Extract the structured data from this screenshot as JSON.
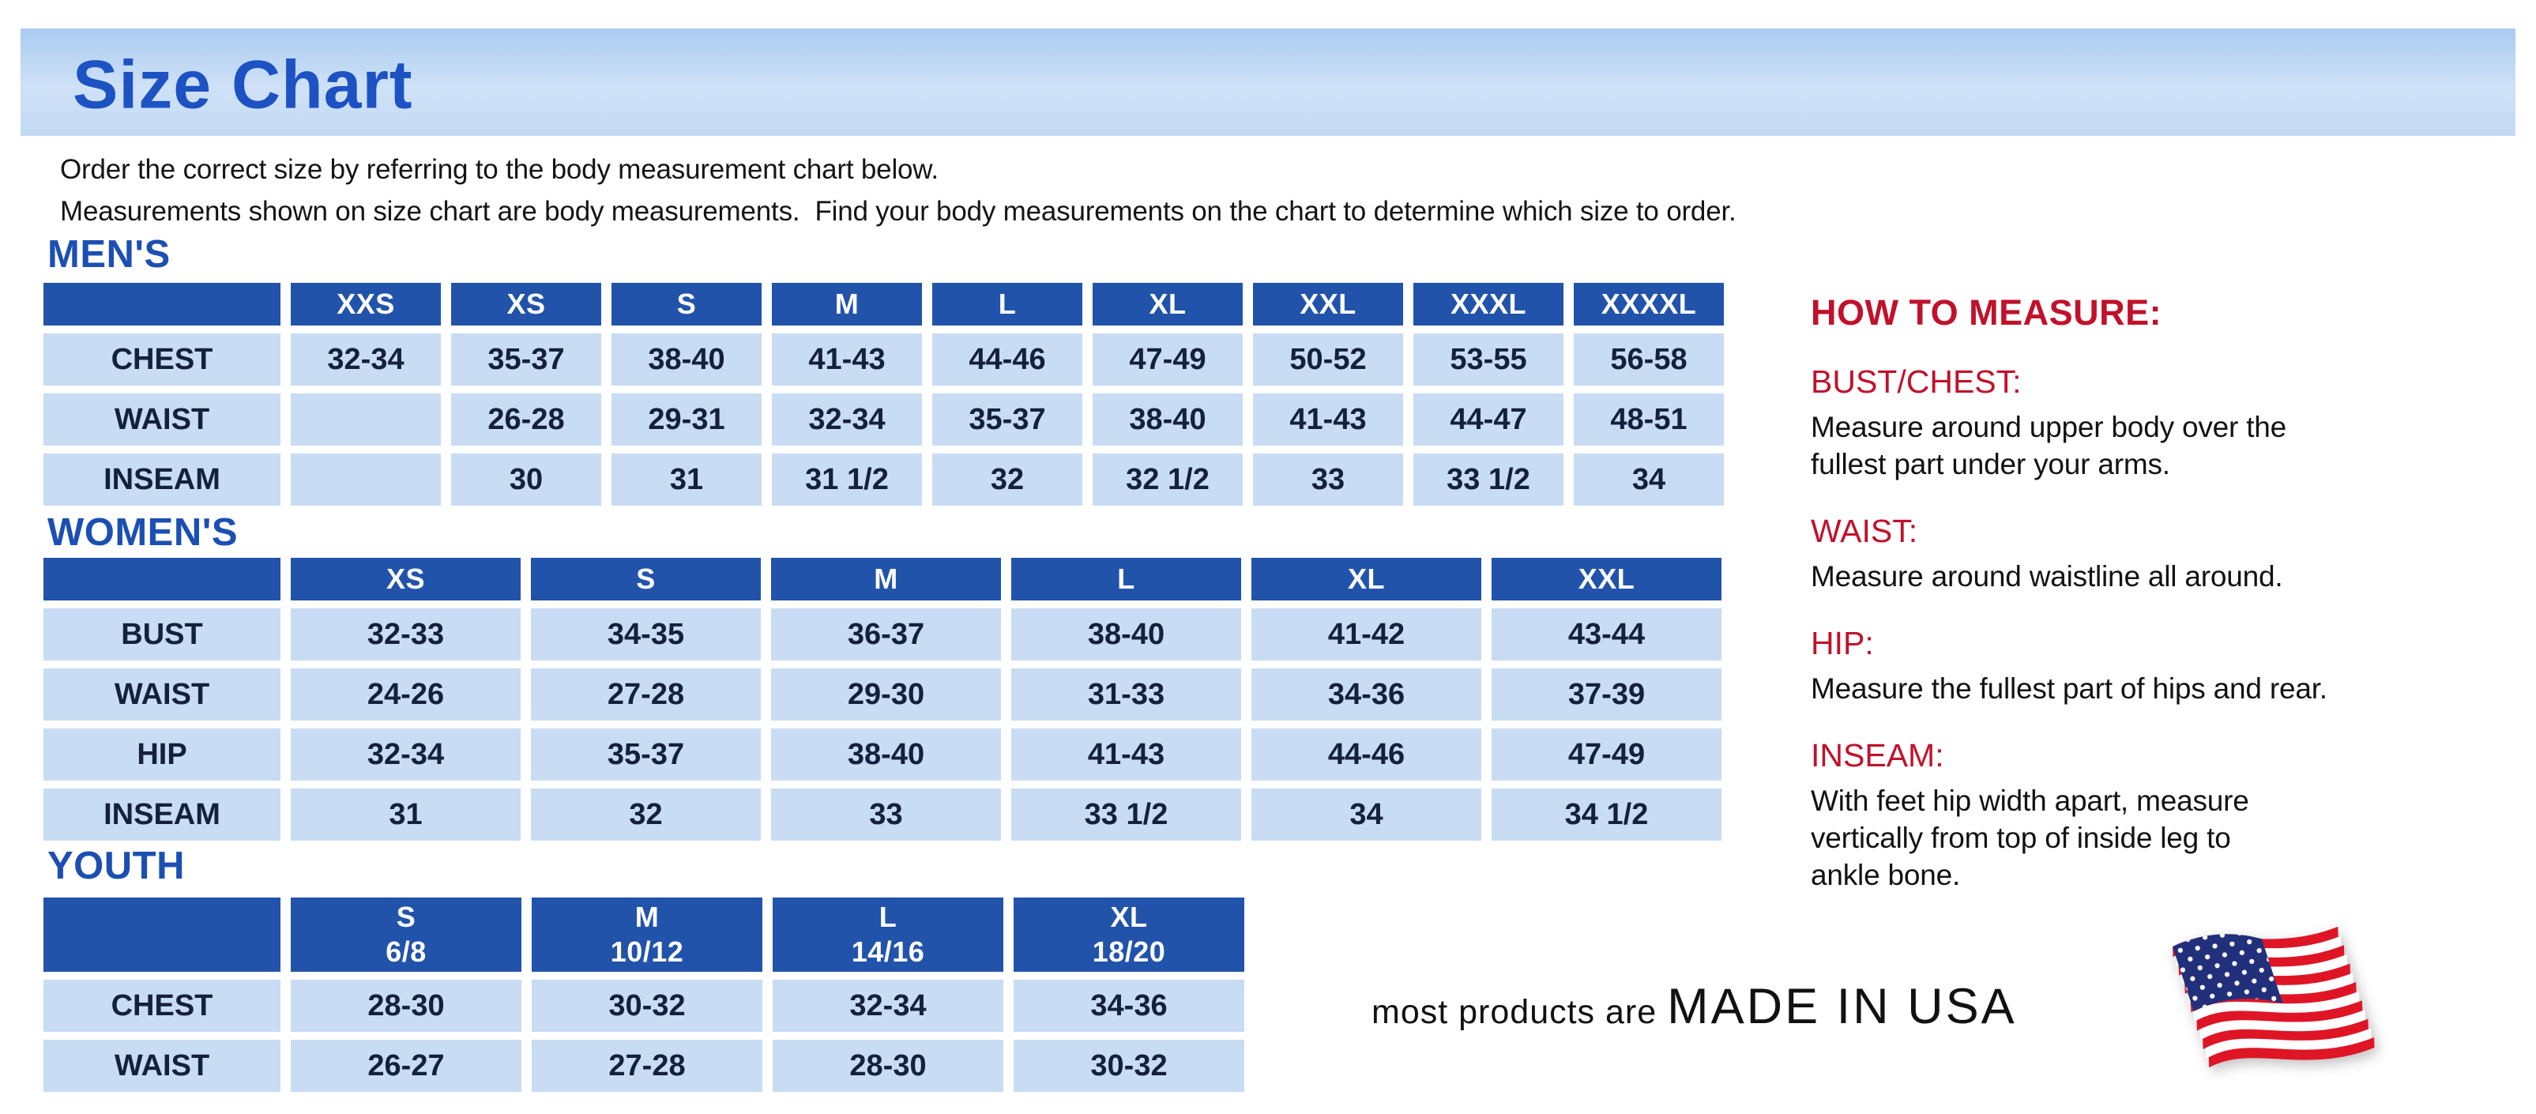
{
  "page": {
    "title": "Size Chart",
    "intro_lines": [
      "Order the correct size by referring to the body measurement chart below.",
      "Measurements shown on size chart are body measurements.  Find your body measurements on the chart to determine which size to order."
    ]
  },
  "tables": [
    {
      "id": "mens",
      "section_label": "MEN'S",
      "columns": [
        {
          "label": "XXS"
        },
        {
          "label": "XS"
        },
        {
          "label": "S"
        },
        {
          "label": "M"
        },
        {
          "label": "L"
        },
        {
          "label": "XL"
        },
        {
          "label": "XXL"
        },
        {
          "label": "XXXL"
        },
        {
          "label": "XXXXL"
        }
      ],
      "rows": [
        {
          "label": "CHEST",
          "values": [
            "32-34",
            "35-37",
            "38-40",
            "41-43",
            "44-46",
            "47-49",
            "50-52",
            "53-55",
            "56-58"
          ]
        },
        {
          "label": "WAIST",
          "values": [
            "",
            "26-28",
            "29-31",
            "32-34",
            "35-37",
            "38-40",
            "41-43",
            "44-47",
            "48-51"
          ]
        },
        {
          "label": "INSEAM",
          "values": [
            "",
            "30",
            "31",
            "31 1/2",
            "32",
            "32 1/2",
            "33",
            "33 1/2",
            "34"
          ]
        }
      ]
    },
    {
      "id": "womens",
      "section_label": "WOMEN'S",
      "columns": [
        {
          "label": "XS"
        },
        {
          "label": "S"
        },
        {
          "label": "M"
        },
        {
          "label": "L"
        },
        {
          "label": "XL"
        },
        {
          "label": "XXL"
        }
      ],
      "rows": [
        {
          "label": "BUST",
          "values": [
            "32-33",
            "34-35",
            "36-37",
            "38-40",
            "41-42",
            "43-44"
          ]
        },
        {
          "label": "WAIST",
          "values": [
            "24-26",
            "27-28",
            "29-30",
            "31-33",
            "34-36",
            "37-39"
          ]
        },
        {
          "label": "HIP",
          "values": [
            "32-34",
            "35-37",
            "38-40",
            "41-43",
            "44-46",
            "47-49"
          ]
        },
        {
          "label": "INSEAM",
          "values": [
            "31",
            "32",
            "33",
            "33 1/2",
            "34",
            "34 1/2"
          ]
        }
      ]
    },
    {
      "id": "youth",
      "section_label": "YOUTH",
      "columns": [
        {
          "label": "S",
          "sub": "6/8"
        },
        {
          "label": "M",
          "sub": "10/12"
        },
        {
          "label": "L",
          "sub": "14/16"
        },
        {
          "label": "XL",
          "sub": "18/20"
        }
      ],
      "rows": [
        {
          "label": "CHEST",
          "values": [
            "28-30",
            "30-32",
            "32-34",
            "34-36"
          ]
        },
        {
          "label": "WAIST",
          "values": [
            "26-27",
            "27-28",
            "28-30",
            "30-32"
          ]
        }
      ]
    }
  ],
  "howto": {
    "title": "HOW TO MEASURE:",
    "sections": [
      {
        "heading": "BUST/CHEST:",
        "text": "Measure around upper body over the\nfullest part under your arms."
      },
      {
        "heading": "WAIST:",
        "text": "Measure around waistline all around."
      },
      {
        "heading": "HIP:",
        "text": "Measure the fullest part of hips and rear."
      },
      {
        "heading": "INSEAM:",
        "text": "With feet hip width apart, measure\nvertically from top of inside leg to\nankle bone."
      }
    ]
  },
  "footer": {
    "prefix": "most products are ",
    "emphasis": "MADE IN USA",
    "flag_icon": "us-flag-icon"
  },
  "colors": {
    "banner_background": "#bdd6f3",
    "title_blue": "#1d52c3",
    "section_label_blue": "#1c4fb3",
    "table_header_blue": "#2253ab",
    "table_cell_blue": "#c8dcf4",
    "table_text_navy": "#14203e",
    "heading_red": "#c1112b",
    "body_text": "#121212",
    "flag_red": "#df1526",
    "flag_navy": "#22307c"
  }
}
